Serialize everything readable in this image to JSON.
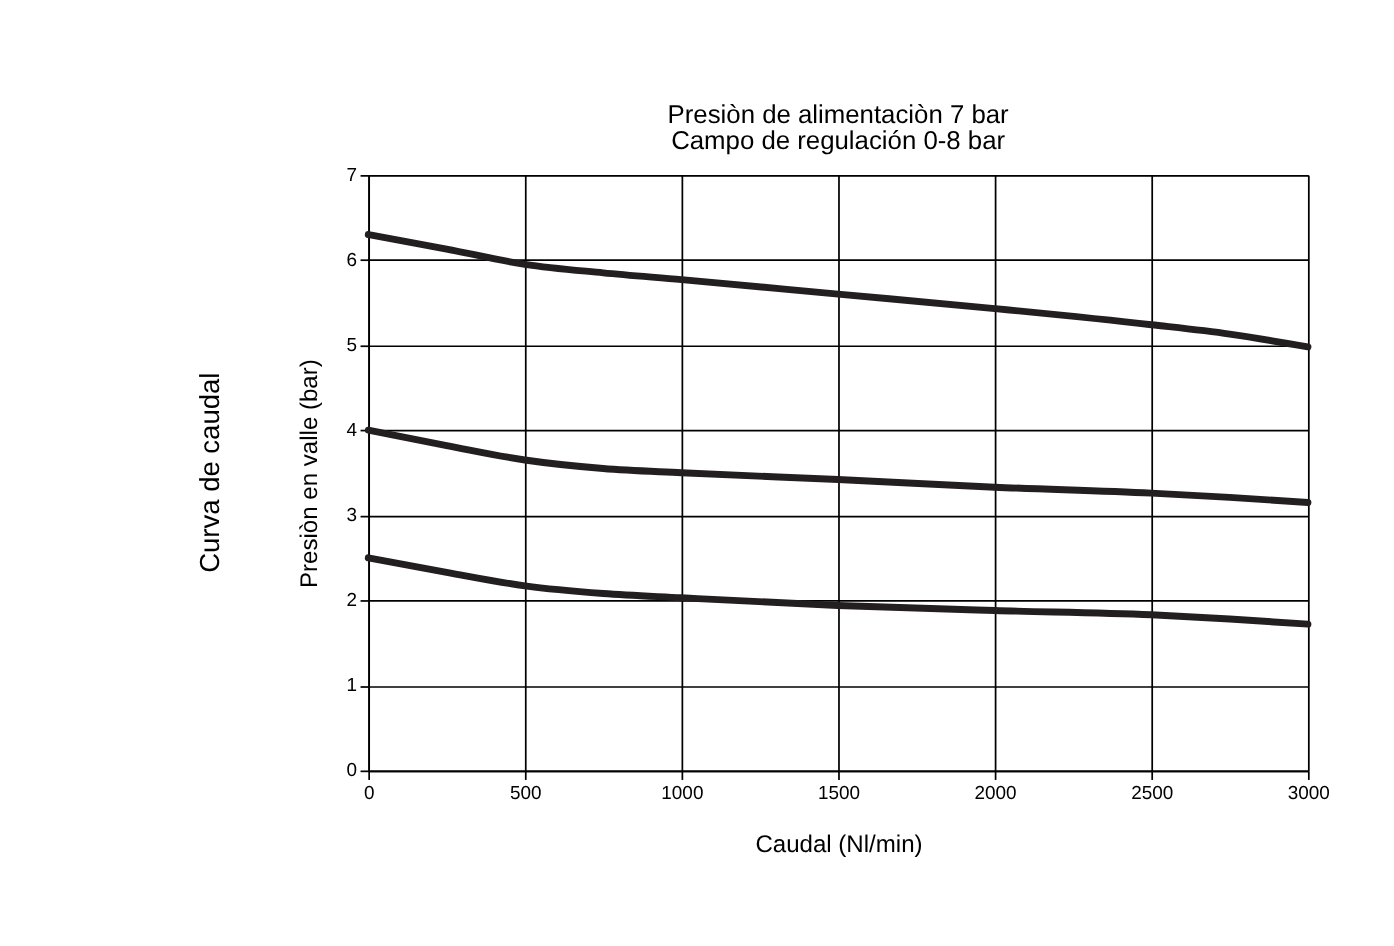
{
  "chart_data": {
    "type": "line",
    "title": "Presiòn de alimentaciòn 7 bar",
    "subtitle": "Campo de regulación 0-8 bar",
    "xlabel": "Caudal (Nl/min)",
    "ylabel": "Presiòn en valle (bar)",
    "annotations": [
      "Curva de caudal"
    ],
    "x": [
      0,
      250,
      500,
      750,
      1000,
      1500,
      2000,
      2500,
      2750,
      3000
    ],
    "series": [
      {
        "color": "#231f20",
        "values": [
          6.3,
          6.13,
          5.95,
          5.85,
          5.77,
          5.6,
          5.43,
          5.24,
          5.13,
          4.98
        ]
      },
      {
        "color": "#231f20",
        "values": [
          4.0,
          3.82,
          3.65,
          3.55,
          3.5,
          3.42,
          3.33,
          3.26,
          3.21,
          3.15
        ]
      },
      {
        "color": "#231f20",
        "values": [
          2.5,
          2.33,
          2.17,
          2.08,
          2.03,
          1.94,
          1.88,
          1.83,
          1.78,
          1.72
        ]
      }
    ],
    "xlim": [
      0,
      3000
    ],
    "xticks": [
      0,
      500,
      1000,
      1500,
      2000,
      2500,
      3000
    ],
    "ylim": [
      0,
      7
    ],
    "yticks": [
      0,
      1,
      2,
      3,
      4,
      5,
      6,
      7
    ],
    "grid": true,
    "legend": false,
    "marker": "none",
    "line_style": "solid"
  }
}
